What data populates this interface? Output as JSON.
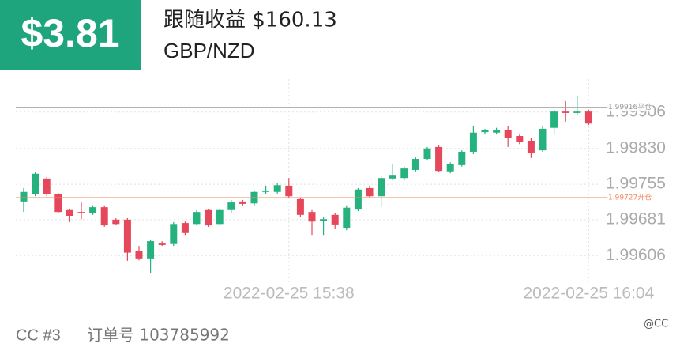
{
  "header": {
    "amount": "$3.81",
    "title": "跟随收益 $160.13",
    "pair": "GBP/NZD"
  },
  "footer": {
    "account": "CC #3",
    "order": "订单号 103785992",
    "watermark": "@CC"
  },
  "chart_data": {
    "type": "candlestick",
    "categories": [
      null,
      null,
      null,
      null,
      null,
      null,
      null,
      null,
      null,
      null,
      null,
      null,
      null,
      null,
      null,
      null,
      null,
      null,
      null,
      null,
      null,
      null,
      null,
      "2022-02-25 15:38",
      null,
      null,
      null,
      null,
      null,
      null,
      null,
      null,
      null,
      null,
      null,
      null,
      null,
      null,
      null,
      null,
      null,
      null,
      null,
      null,
      null,
      null,
      null,
      null,
      null,
      "2022-02-25 16:04"
    ],
    "open": [
      1.99719,
      1.99734,
      1.99767,
      1.99734,
      1.99701,
      1.99697,
      1.99694,
      1.99707,
      1.99681,
      1.99681,
      1.99615,
      1.996,
      1.99631,
      1.9963,
      1.99674,
      1.99672,
      1.99701,
      1.99672,
      1.99701,
      1.99719,
      1.99715,
      1.99739,
      1.99739,
      1.99752,
      1.99724,
      1.99697,
      1.99679,
      1.99691,
      1.99663,
      1.99702,
      1.99747,
      1.9973,
      1.99767,
      1.99768,
      1.99785,
      1.99808,
      1.99833,
      1.99782,
      1.99795,
      1.99823,
      1.99864,
      1.99863,
      1.99868,
      1.99856,
      1.99846,
      1.99826,
      1.99873,
      1.99907,
      1.99904,
      1.99907
    ],
    "high": [
      1.99747,
      1.9978,
      1.9977,
      1.99737,
      1.99704,
      1.99717,
      1.99711,
      1.99711,
      1.99684,
      1.99684,
      1.99626,
      1.99639,
      1.99636,
      1.99676,
      1.99677,
      1.99701,
      1.99704,
      1.99704,
      1.99722,
      1.99722,
      1.99742,
      1.99752,
      1.99757,
      1.99768,
      1.99727,
      1.99701,
      1.99687,
      1.99694,
      1.99711,
      1.99747,
      1.99752,
      1.99772,
      1.99798,
      1.99792,
      1.99811,
      1.99833,
      1.99836,
      1.99801,
      1.99826,
      1.99876,
      1.99871,
      1.99873,
      1.99876,
      1.99859,
      1.99851,
      1.99876,
      1.99911,
      1.99929,
      1.99939,
      1.99911
    ],
    "low": [
      1.99697,
      1.9973,
      1.9973,
      1.99694,
      1.99676,
      1.99682,
      1.99691,
      1.99666,
      1.99669,
      1.99595,
      1.99596,
      1.9957,
      1.99626,
      1.99626,
      1.99649,
      1.99669,
      1.99666,
      1.99669,
      1.99694,
      1.99711,
      1.99711,
      1.99735,
      1.99735,
      1.99727,
      1.99687,
      1.99649,
      1.99649,
      1.99661,
      1.99659,
      1.99699,
      1.99727,
      1.99707,
      1.99763,
      1.99763,
      1.99782,
      1.99805,
      1.9978,
      1.99778,
      1.99792,
      1.99818,
      1.99859,
      1.99859,
      1.99833,
      1.99839,
      1.9981,
      1.99823,
      1.99859,
      1.99886,
      1.99901,
      1.99879
    ],
    "close": [
      1.99739,
      1.99777,
      1.99734,
      1.99697,
      1.99689,
      1.99694,
      1.99707,
      1.99669,
      1.99672,
      1.99612,
      1.996,
      1.99636,
      1.99628,
      1.99672,
      1.99653,
      1.99697,
      1.99669,
      1.99701,
      1.99717,
      1.99714,
      1.99739,
      1.99742,
      1.99753,
      1.9973,
      1.99691,
      1.99677,
      1.99682,
      1.99671,
      1.99706,
      1.99744,
      1.9973,
      1.99768,
      1.99773,
      1.99788,
      1.99808,
      1.9983,
      1.99783,
      1.99798,
      1.99823,
      1.99863,
      1.99868,
      1.99869,
      1.99851,
      1.99843,
      1.99821,
      1.99871,
      1.99907,
      1.99904,
      1.99907,
      1.99882
    ],
    "up_color": "#26b27e",
    "down_color": "#e5485a",
    "ylim": [
      1.9957,
      1.99975
    ],
    "yticks": [
      1.99606,
      1.99681,
      1.99755,
      {
        "value": 1.9983,
        "label": "1.99830"
      },
      1.99906
    ],
    "reference_lines": [
      {
        "value": 1.99916,
        "label": "1.99916平仓",
        "color": "#9a9a9a"
      },
      {
        "value": 1.99727,
        "label": "1.99727开仓",
        "color": "#f08a5d"
      }
    ],
    "grid": true
  }
}
